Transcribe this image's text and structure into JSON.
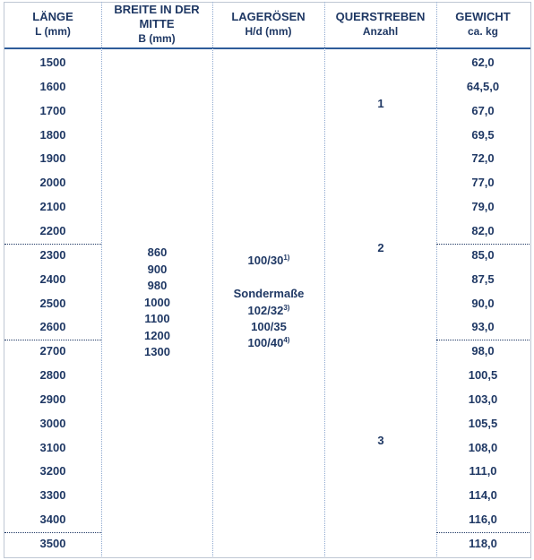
{
  "header": [
    {
      "title": "LÄNGE",
      "unit": "L (mm)"
    },
    {
      "title": "BREITE IN DER MITTE",
      "unit": "B (mm)"
    },
    {
      "title": "LAGERÖSEN",
      "unit": "H/d (mm)"
    },
    {
      "title": "QUERSTREBEN",
      "unit": "Anzahl"
    },
    {
      "title": "GEWICHT",
      "unit": "ca. kg"
    }
  ],
  "lengths": [
    "1500",
    "1600",
    "1700",
    "1800",
    "1900",
    "2000",
    "2100",
    "2200",
    "2300",
    "2400",
    "2500",
    "2600",
    "2700",
    "2800",
    "2900",
    "3000",
    "3100",
    "3200",
    "3300",
    "3400",
    "3500"
  ],
  "widths": [
    "860",
    "900",
    "980",
    "1000",
    "1100",
    "1200",
    "1300"
  ],
  "lagerosen": {
    "standard": {
      "text": "100/30",
      "note": "1)"
    },
    "special_title": "Sondermaße",
    "special": [
      {
        "text": "102/32",
        "note": "3)"
      },
      {
        "text": "100/35"
      },
      {
        "text": "100/40",
        "note": "4)"
      }
    ]
  },
  "querstreben": [
    "1",
    "2",
    "3"
  ],
  "weights": [
    "62,0",
    "64,5,0",
    "67,0",
    "69,5",
    "72,0",
    "77,0",
    "79,0",
    "82,0",
    "85,0",
    "87,5",
    "90,0",
    "93,0",
    "98,0",
    "100,5",
    "103,0",
    "105,5",
    "108,0",
    "111,0",
    "114,0",
    "116,0",
    "118,0"
  ]
}
